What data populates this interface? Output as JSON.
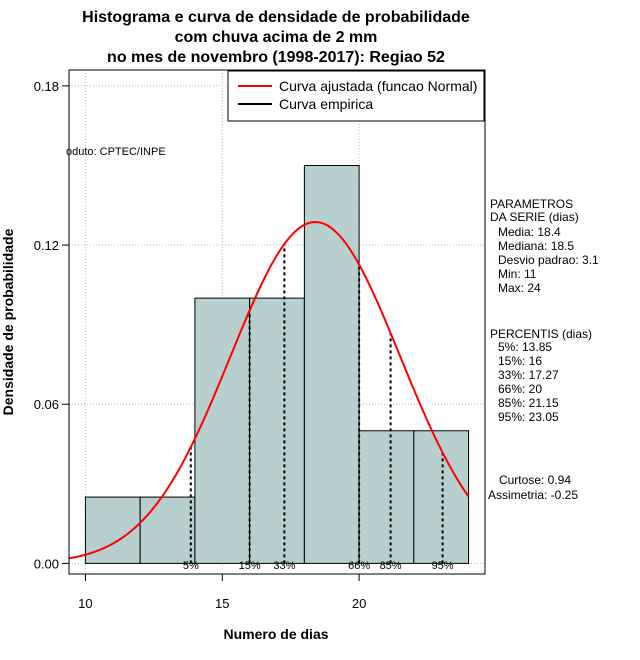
{
  "chart_data": {
    "type": "bar",
    "title_lines": [
      "Histograma e curva de densidade de probabilidade",
      "com chuva acima de 2 mm",
      "no mes de novembro (1998-2017): Regiao 52"
    ],
    "xlabel": "Numero de dias",
    "ylabel": "Densidade de probabilidade",
    "xlim": [
      9.4,
      24.6
    ],
    "ylim": [
      -0.004,
      0.186
    ],
    "x_ticks": [
      10,
      15,
      20
    ],
    "y_ticks": [
      0.0,
      0.06,
      0.12,
      0.18
    ],
    "y_tick_labels": [
      "0.00",
      "0.06",
      "0.12",
      "0.18"
    ],
    "grid": true,
    "bars": [
      {
        "x0": 10,
        "x1": 12,
        "value": 0.025
      },
      {
        "x0": 12,
        "x1": 14,
        "value": 0.025
      },
      {
        "x0": 14,
        "x1": 16,
        "value": 0.1
      },
      {
        "x0": 16,
        "x1": 18,
        "value": 0.1
      },
      {
        "x0": 18,
        "x1": 20,
        "value": 0.15
      },
      {
        "x0": 20,
        "x1": 22,
        "value": 0.05
      },
      {
        "x0": 22,
        "x1": 24,
        "value": 0.05
      }
    ],
    "series": [
      {
        "name": "Curva ajustada (funcao Normal)",
        "distribution": "normal",
        "mean": 18.4,
        "sd": 3.1,
        "color": "#ff0000"
      },
      {
        "name": "Curva empirica",
        "color": "#000000"
      }
    ],
    "legend_position": "top-right",
    "percentile_lines": [
      {
        "label": "5%",
        "x": 13.85
      },
      {
        "label": "15%",
        "x": 16
      },
      {
        "label": "33%",
        "x": 17.27
      },
      {
        "label": "66%",
        "x": 20
      },
      {
        "label": "85%",
        "x": 21.15
      },
      {
        "label": "95%",
        "x": 23.05
      }
    ],
    "annotation": "oduto: CPTEC/INPE",
    "parametros": {
      "heading": [
        "PARAMETROS",
        "DA SERIE (dias)"
      ],
      "lines": [
        "Media: 18.4",
        "Mediana: 18.5",
        "Desvio padrao: 3.1",
        "Min: 11",
        "Max: 24"
      ]
    },
    "percentis": {
      "heading": "PERCENTIS (dias)",
      "lines": [
        "5%: 13.85",
        "15%: 16",
        "33%: 17.27",
        "66%: 20",
        "85%: 21.15",
        "95%: 23.05"
      ]
    },
    "shape_stats": [
      "Curtose: 0.94",
      "Assimetria: -0.25"
    ],
    "colors": {
      "bar_fill": "#b8cfcf",
      "bar_stroke": "#000000",
      "curve": "#ff0000",
      "grid": "#bbbbbb"
    }
  }
}
